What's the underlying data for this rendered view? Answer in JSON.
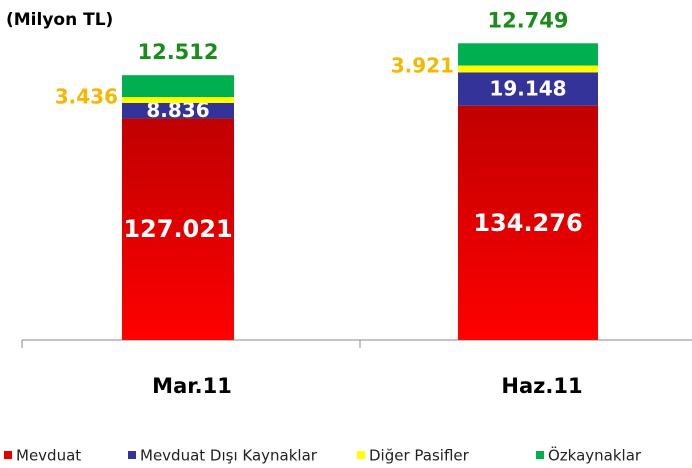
{
  "chart_data": {
    "type": "stacked_bar",
    "subtitle": "(Milyon TL)",
    "categories": [
      "Mar.11",
      "Haz.11"
    ],
    "series": [
      {
        "name": "Mevduat",
        "color": "#e60000",
        "values": [
          127021,
          134276
        ],
        "value_labels": [
          "127.021",
          "134.276"
        ]
      },
      {
        "name": "Mevduat Dışı Kaynaklar",
        "color": "#33339a",
        "values": [
          8836,
          19148
        ],
        "value_labels": [
          "8.836",
          "19.148"
        ]
      },
      {
        "name": "Diğer Pasifler",
        "color": "#ffff00",
        "values": [
          3436,
          3921
        ],
        "value_labels": [
          "3.436",
          "3.921"
        ]
      },
      {
        "name": "Özkaynaklar",
        "color": "#00b050",
        "values": [
          12512,
          12749
        ],
        "value_labels": [
          "12.512",
          "12.749"
        ]
      }
    ],
    "ylim": [
      0,
      180000
    ],
    "legend": "bottom"
  }
}
